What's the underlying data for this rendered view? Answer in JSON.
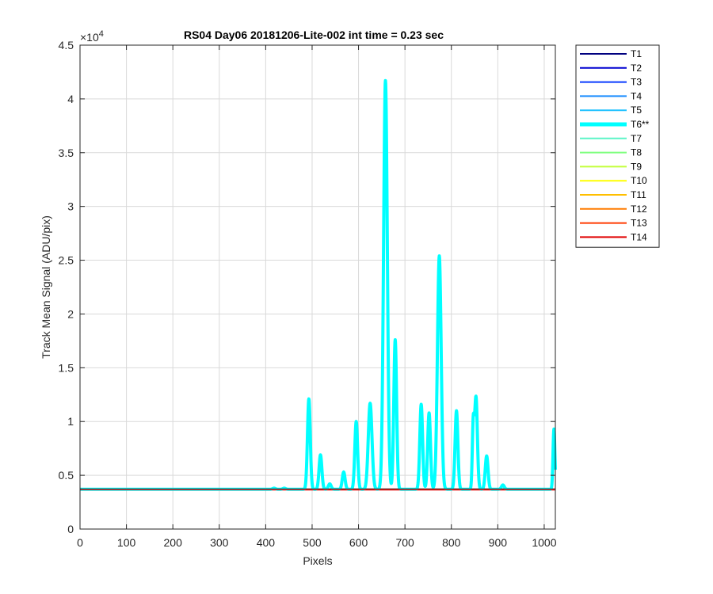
{
  "chart_data": {
    "type": "line",
    "title": "RS04 Day06 20181206-Lite-002 int time = 0.23 sec",
    "xlabel": "Pixels",
    "ylabel": "Track Mean Signal (ADU/pix)",
    "y_exponent_label": "×10",
    "y_exponent_power": "4",
    "xlim": [
      0,
      1024
    ],
    "ylim": [
      0,
      45000
    ],
    "x_ticks": [
      0,
      100,
      200,
      300,
      400,
      500,
      600,
      700,
      800,
      900,
      1000
    ],
    "x_tick_labels": [
      "0",
      "100",
      "200",
      "300",
      "400",
      "500",
      "600",
      "700",
      "800",
      "900",
      "1000"
    ],
    "y_ticks": [
      0,
      5000,
      10000,
      15000,
      20000,
      25000,
      30000,
      35000,
      40000,
      45000
    ],
    "y_tick_labels": [
      "0",
      "0.5",
      "1",
      "1.5",
      "2",
      "2.5",
      "3",
      "3.5",
      "4",
      "4.5"
    ],
    "grid": true,
    "legend_position": "outside-right",
    "baseline": 3700,
    "series": [
      {
        "name": "T1",
        "color": "#00007f",
        "width": 1.5,
        "baseline": 3700
      },
      {
        "name": "T2",
        "color": "#0000d0",
        "width": 1.5,
        "baseline": 3700
      },
      {
        "name": "T3",
        "color": "#0a3bff",
        "width": 1.5,
        "baseline": 3700
      },
      {
        "name": "T4",
        "color": "#1a8cff",
        "width": 1.5,
        "baseline": 3700
      },
      {
        "name": "T5",
        "color": "#22c2ff",
        "width": 1.5,
        "baseline": 3700
      },
      {
        "name": "T6**",
        "color": "#00ffff",
        "width": 4,
        "baseline": 3700,
        "peaks": [
          {
            "x": 418,
            "y": 3800,
            "w": 3
          },
          {
            "x": 440,
            "y": 3800,
            "w": 3
          },
          {
            "x": 493,
            "y": 12100,
            "w": 3
          },
          {
            "x": 518,
            "y": 6900,
            "w": 3
          },
          {
            "x": 538,
            "y": 4200,
            "w": 3
          },
          {
            "x": 568,
            "y": 5300,
            "w": 3
          },
          {
            "x": 595,
            "y": 10000,
            "w": 3
          },
          {
            "x": 625,
            "y": 11700,
            "w": 4
          },
          {
            "x": 658,
            "y": 41700,
            "w": 4
          },
          {
            "x": 679,
            "y": 17600,
            "w": 3
          },
          {
            "x": 735,
            "y": 11600,
            "w": 3
          },
          {
            "x": 752,
            "y": 10800,
            "w": 3
          },
          {
            "x": 774,
            "y": 25400,
            "w": 4
          },
          {
            "x": 811,
            "y": 11000,
            "w": 3
          },
          {
            "x": 847,
            "y": 9300,
            "w": 2
          },
          {
            "x": 853,
            "y": 12300,
            "w": 3
          },
          {
            "x": 876,
            "y": 6800,
            "w": 3
          },
          {
            "x": 911,
            "y": 4100,
            "w": 3
          },
          {
            "x": 1021,
            "y": 9300,
            "w": 2
          }
        ]
      },
      {
        "name": "T7",
        "color": "#5cf5c7",
        "width": 1.5,
        "baseline": 3700
      },
      {
        "name": "T8",
        "color": "#7fff7f",
        "width": 1.5,
        "baseline": 3700
      },
      {
        "name": "T9",
        "color": "#c3ff3c",
        "width": 1.5,
        "baseline": 3700
      },
      {
        "name": "T10",
        "color": "#ffff00",
        "width": 1.5,
        "baseline": 3700
      },
      {
        "name": "T11",
        "color": "#ffbf00",
        "width": 1.5,
        "baseline": 3700
      },
      {
        "name": "T12",
        "color": "#ff7b00",
        "width": 1.5,
        "baseline": 3700
      },
      {
        "name": "T13",
        "color": "#ff3a00",
        "width": 1.5,
        "baseline": 3700
      },
      {
        "name": "T14",
        "color": "#e00000",
        "width": 1.5,
        "baseline": 3650
      }
    ]
  }
}
